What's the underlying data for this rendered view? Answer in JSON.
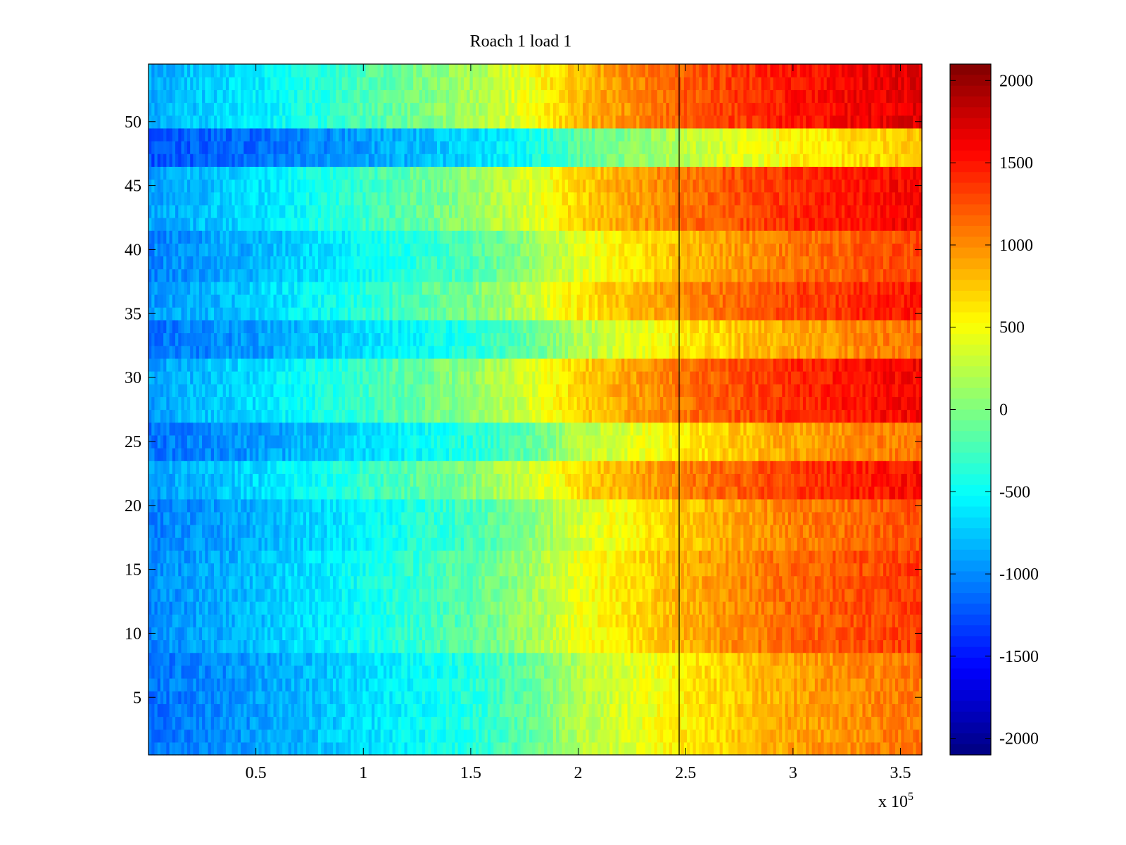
{
  "chart_data": {
    "type": "heatmap",
    "title": "Roach 1 load 1",
    "xlabel": "",
    "ylabel": "",
    "x_exponent_label": "x 10",
    "x_exponent_power": "5",
    "xlim": [
      0,
      3.6
    ],
    "ylim": [
      0.5,
      54.5
    ],
    "x_ticks": [
      0.5,
      1,
      1.5,
      2,
      2.5,
      3,
      3.5
    ],
    "x_tick_labels": [
      "0.5",
      "1",
      "1.5",
      "2",
      "2.5",
      "3",
      "3.5"
    ],
    "y_ticks": [
      5,
      10,
      15,
      20,
      25,
      30,
      35,
      40,
      45,
      50
    ],
    "y_tick_labels": [
      "5",
      "10",
      "15",
      "20",
      "25",
      "30",
      "35",
      "40",
      "45",
      "50"
    ],
    "colormap": "jet",
    "clim": [
      -2100,
      2100
    ],
    "colorbar_ticks": [
      2000,
      1500,
      1000,
      500,
      0,
      -500,
      -1000,
      -1500,
      -2000
    ],
    "colorbar_tick_labels": [
      "2000",
      "1500",
      "1000",
      "500",
      "0",
      "-500",
      "-1000",
      "-1500",
      "-2000"
    ],
    "rows": 54,
    "vertical_marker_x": 2.47,
    "trend_by_x": {
      "x": [
        0,
        0.5,
        1.0,
        1.5,
        1.8,
        2.0,
        2.5,
        3.0,
        3.6
      ],
      "value_all_rows_mean": [
        -1050,
        -850,
        -550,
        -250,
        50,
        350,
        750,
        1050,
        1250
      ]
    },
    "row_band_offsets": [
      {
        "rows": [
          1,
          8
        ],
        "offset": -150
      },
      {
        "rows": [
          9,
          16
        ],
        "offset": 100
      },
      {
        "rows": [
          17,
          20
        ],
        "offset": 0
      },
      {
        "rows": [
          21,
          23
        ],
        "offset": 300
      },
      {
        "rows": [
          24,
          26
        ],
        "offset": -150
      },
      {
        "rows": [
          27,
          31
        ],
        "offset": 350
      },
      {
        "rows": [
          32,
          34
        ],
        "offset": -150
      },
      {
        "rows": [
          35,
          37
        ],
        "offset": 250
      },
      {
        "rows": [
          38,
          41
        ],
        "offset": 50
      },
      {
        "rows": [
          42,
          46
        ],
        "offset": 350
      },
      {
        "rows": [
          47,
          49
        ],
        "offset": -500
      },
      {
        "rows": [
          50,
          54
        ],
        "offset": 450
      }
    ]
  }
}
